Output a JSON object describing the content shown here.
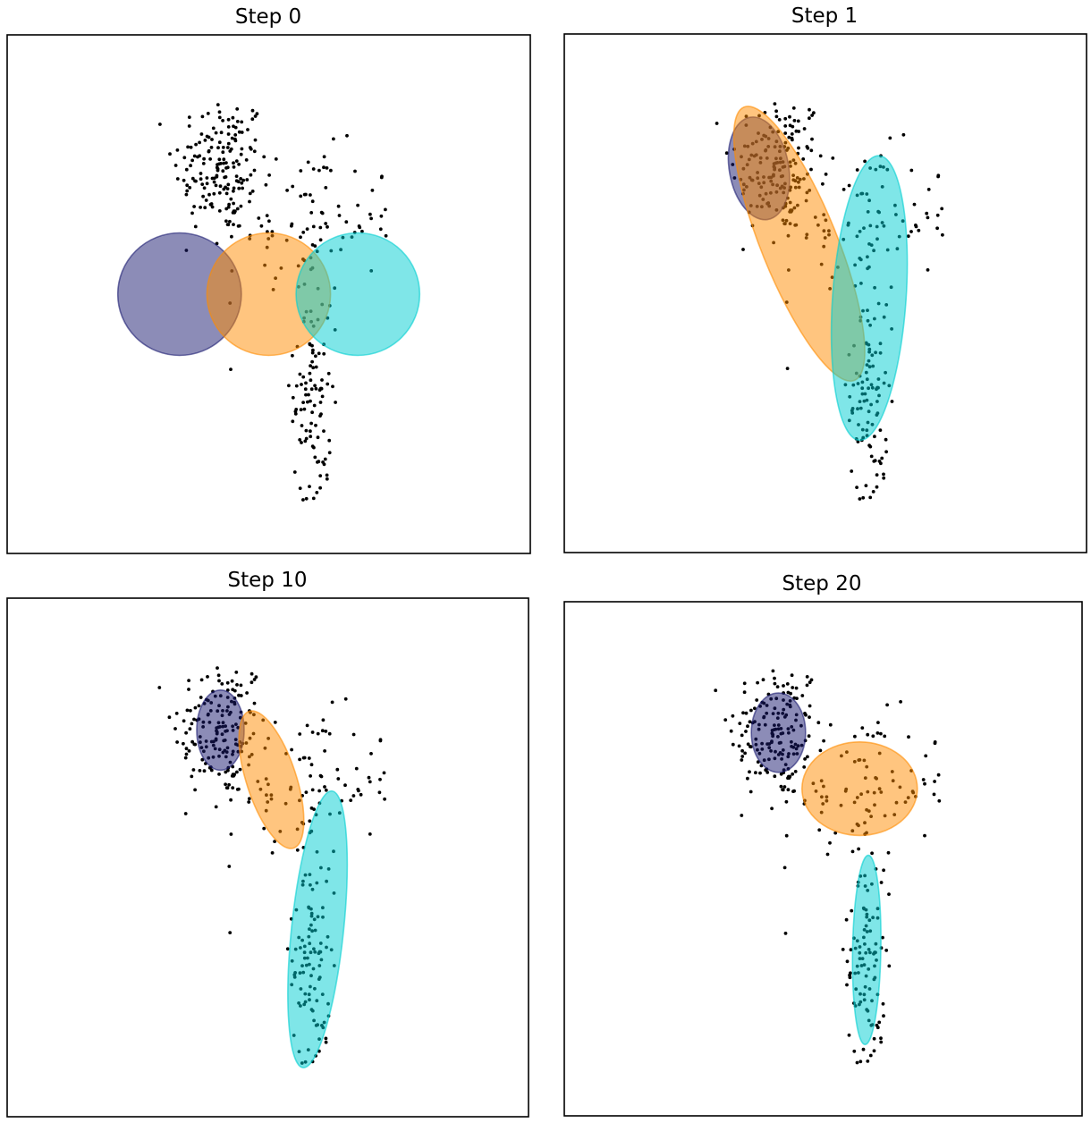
{
  "chart_data": [
    {
      "type": "scatter",
      "title": "Step 0",
      "xlim": [
        -2.2,
        2.2
      ],
      "ylim": [
        -2.2,
        2.2
      ],
      "axes_visible": false,
      "points_color": "#000000",
      "components": [
        {
          "color": "#191970",
          "cx": -0.75,
          "cy": 0.0,
          "rx": 0.52,
          "ry": 0.52,
          "angle": 0
        },
        {
          "color": "#FF8C00",
          "cx": 0.0,
          "cy": 0.0,
          "rx": 0.52,
          "ry": 0.52,
          "angle": 0
        },
        {
          "color": "#00CED1",
          "cx": 0.75,
          "cy": 0.0,
          "rx": 0.52,
          "ry": 0.52,
          "angle": 0
        }
      ]
    },
    {
      "type": "scatter",
      "title": "Step 1",
      "xlim": [
        -2.2,
        2.2
      ],
      "ylim": [
        -2.2,
        2.2
      ],
      "axes_visible": false,
      "points_color": "#000000",
      "components": [
        {
          "color": "#191970",
          "cx": -0.56,
          "cy": 1.06,
          "rx": 0.25,
          "ry": 0.44,
          "angle": -10
        },
        {
          "color": "#FF8C00",
          "cx": -0.22,
          "cy": 0.42,
          "rx": 0.32,
          "ry": 1.25,
          "angle": -22
        },
        {
          "color": "#00CED1",
          "cx": 0.37,
          "cy": -0.04,
          "rx": 0.31,
          "ry": 1.21,
          "angle": 4
        }
      ]
    },
    {
      "type": "scatter",
      "title": "Step 10",
      "xlim": [
        -2.2,
        2.2
      ],
      "ylim": [
        -2.2,
        2.2
      ],
      "axes_visible": false,
      "points_color": "#000000",
      "components": [
        {
          "color": "#191970",
          "cx": -0.4,
          "cy": 1.08,
          "rx": 0.2,
          "ry": 0.34,
          "angle": 0
        },
        {
          "color": "#FF8C00",
          "cx": 0.03,
          "cy": 0.66,
          "rx": 0.21,
          "ry": 0.61,
          "angle": -18
        },
        {
          "color": "#00CED1",
          "cx": 0.42,
          "cy": -0.61,
          "rx": 0.22,
          "ry": 1.18,
          "angle": 6
        }
      ]
    },
    {
      "type": "scatter",
      "title": "Step 20",
      "xlim": [
        -2.2,
        2.2
      ],
      "ylim": [
        -2.2,
        2.2
      ],
      "axes_visible": false,
      "points_color": "#000000",
      "components": [
        {
          "color": "#191970",
          "cx": -0.38,
          "cy": 1.08,
          "rx": 0.23,
          "ry": 0.34,
          "angle": 0
        },
        {
          "color": "#FF8C00",
          "cx": 0.31,
          "cy": 0.6,
          "rx": 0.49,
          "ry": 0.4,
          "angle": 0
        },
        {
          "color": "#00CED1",
          "cx": 0.37,
          "cy": -0.78,
          "rx": 0.12,
          "ry": 0.81,
          "angle": 1
        }
      ]
    }
  ]
}
